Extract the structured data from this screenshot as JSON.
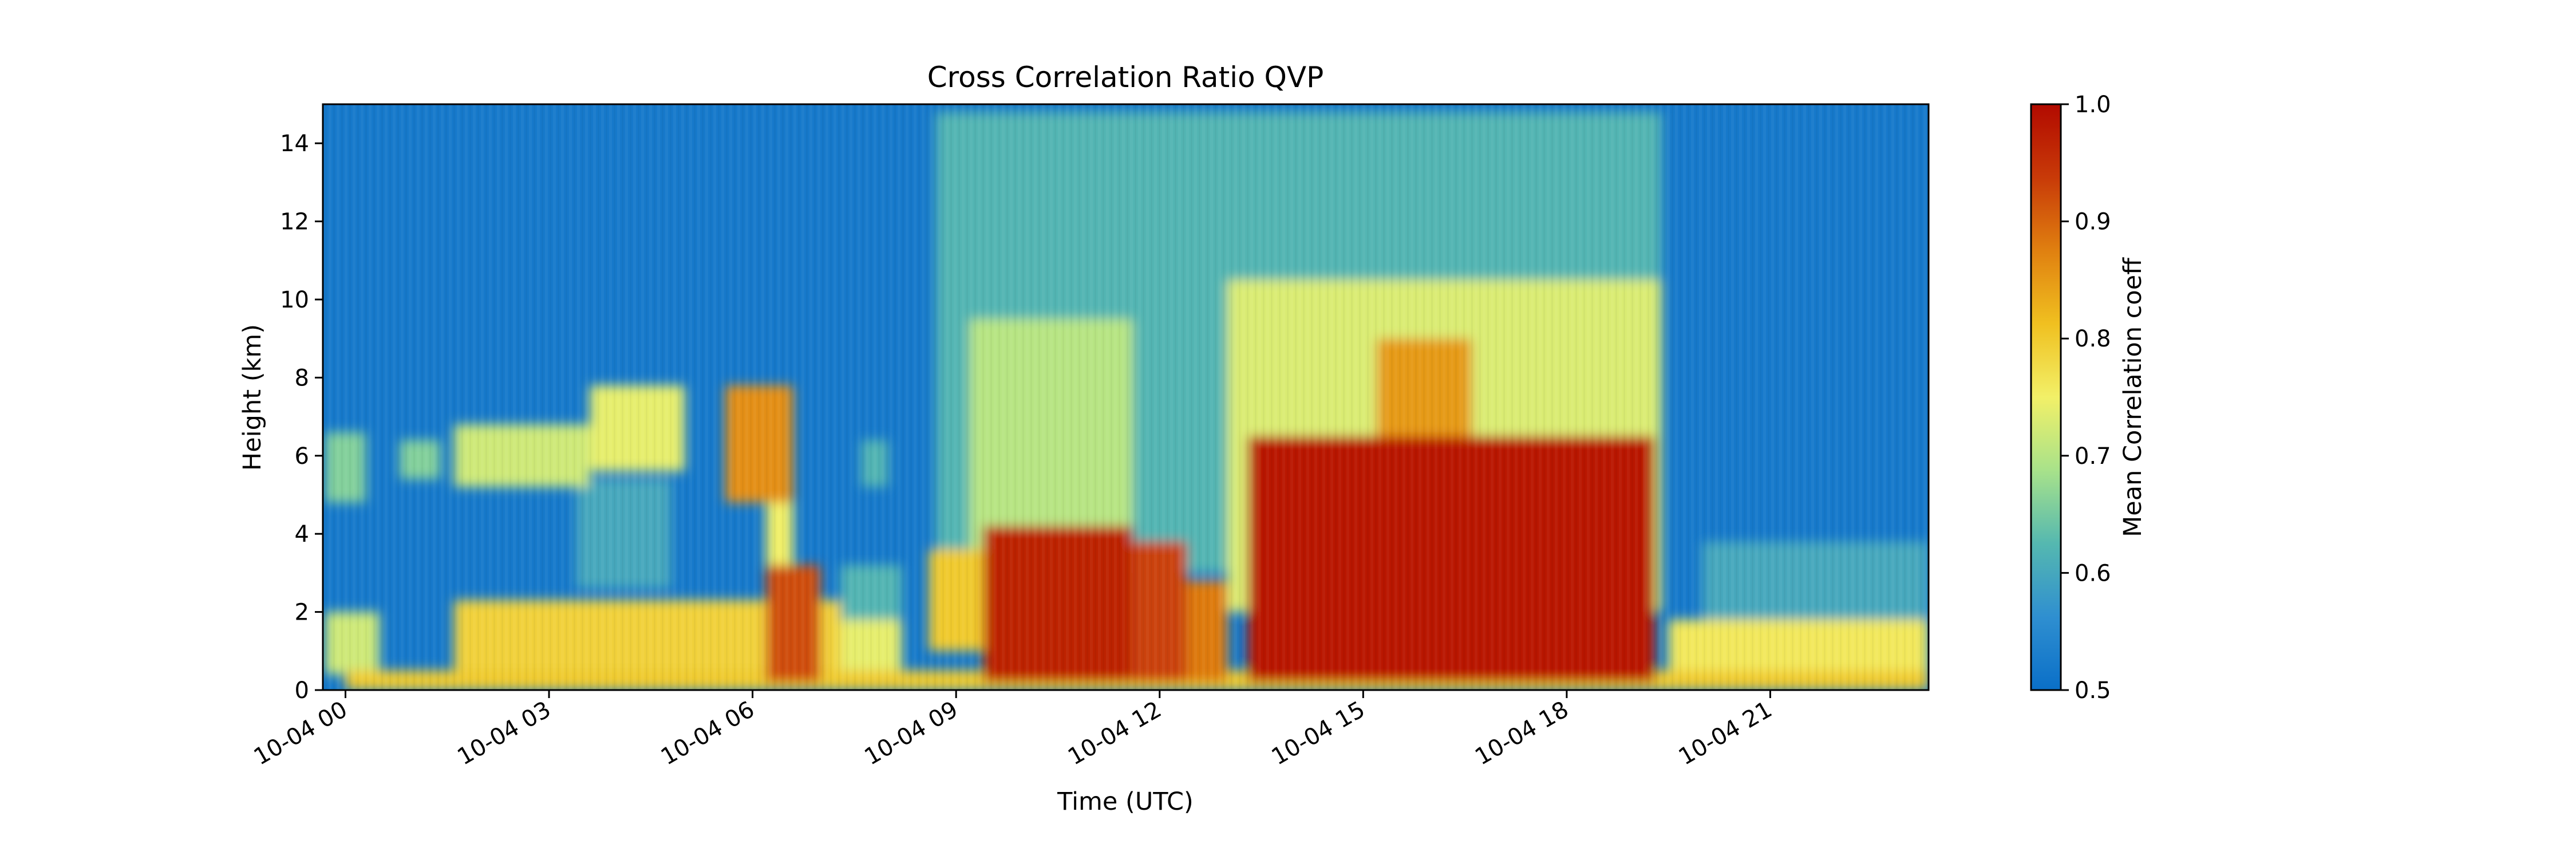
{
  "chart_data": {
    "type": "heatmap",
    "title": "Cross Correlation Ratio QVP",
    "xlabel": "Time (UTC)",
    "ylabel": "Height (km)",
    "x_range": [
      "10-04 00 -00:20",
      "10-04 23:20"
    ],
    "ylim": [
      0,
      15
    ],
    "x_ticks": [
      {
        "label": "10-04 00",
        "hour": 0
      },
      {
        "label": "10-04 03",
        "hour": 3
      },
      {
        "label": "10-04 06",
        "hour": 6
      },
      {
        "label": "10-04 09",
        "hour": 9
      },
      {
        "label": "10-04 12",
        "hour": 12
      },
      {
        "label": "10-04 15",
        "hour": 15
      },
      {
        "label": "10-04 18",
        "hour": 18
      },
      {
        "label": "10-04 21",
        "hour": 21
      }
    ],
    "y_ticks": [
      "0",
      "2",
      "4",
      "6",
      "8",
      "10",
      "12",
      "14"
    ],
    "colorbar": {
      "label": "Mean Correlation coeff",
      "range": [
        0.5,
        1.0
      ],
      "ticks": [
        "0.5",
        "0.6",
        "0.7",
        "0.8",
        "0.9",
        "1.0"
      ],
      "colors": [
        "#0a6fc8",
        "#2f8fd0",
        "#55b8b0",
        "#a8e28a",
        "#f2f068",
        "#f0c020",
        "#e08010",
        "#c83a08",
        "#b20a00"
      ]
    },
    "background_value": 0.52,
    "features": [
      {
        "time_start": 0.0,
        "time_end": 23.33,
        "height_bottom": 0.0,
        "height_top": 0.5,
        "value": 0.8
      },
      {
        "time_start": 1.6,
        "time_end": 7.3,
        "height_bottom": 0.5,
        "height_top": 2.3,
        "value": 0.79
      },
      {
        "time_start": -0.3,
        "time_end": 0.5,
        "height_bottom": 0.4,
        "height_top": 2.0,
        "value": 0.72
      },
      {
        "time_start": -0.3,
        "time_end": 0.3,
        "height_bottom": 4.8,
        "height_top": 6.6,
        "value": 0.66
      },
      {
        "time_start": 0.8,
        "time_end": 1.4,
        "height_bottom": 5.4,
        "height_top": 6.4,
        "value": 0.66
      },
      {
        "time_start": 1.6,
        "time_end": 3.6,
        "height_bottom": 5.2,
        "height_top": 6.8,
        "value": 0.72
      },
      {
        "time_start": 3.6,
        "time_end": 5.0,
        "height_bottom": 5.6,
        "height_top": 7.8,
        "value": 0.74
      },
      {
        "time_start": 3.4,
        "time_end": 4.8,
        "height_bottom": 2.6,
        "height_top": 5.4,
        "value": 0.6
      },
      {
        "time_start": 5.6,
        "time_end": 6.6,
        "height_bottom": 4.8,
        "height_top": 7.8,
        "value": 0.86
      },
      {
        "time_start": 6.2,
        "time_end": 6.6,
        "height_bottom": 3.0,
        "height_top": 5.0,
        "value": 0.75
      },
      {
        "time_start": 7.6,
        "time_end": 8.0,
        "height_bottom": 5.2,
        "height_top": 6.4,
        "value": 0.62
      },
      {
        "time_start": 7.2,
        "time_end": 8.2,
        "height_bottom": 0.5,
        "height_top": 1.8,
        "value": 0.74
      },
      {
        "time_start": 7.3,
        "time_end": 8.2,
        "height_bottom": 1.8,
        "height_top": 3.2,
        "value": 0.62
      },
      {
        "time_start": 6.2,
        "time_end": 7.0,
        "height_bottom": 0.2,
        "height_top": 3.2,
        "value": 0.92
      },
      {
        "time_start": 8.6,
        "time_end": 9.6,
        "height_bottom": 1.0,
        "height_top": 3.6,
        "value": 0.8
      },
      {
        "time_start": 8.7,
        "time_end": 19.4,
        "height_bottom": 3.0,
        "height_top": 14.8,
        "value": 0.62
      },
      {
        "time_start": 9.2,
        "time_end": 11.6,
        "height_bottom": 3.0,
        "height_top": 9.5,
        "value": 0.7
      },
      {
        "time_start": 9.4,
        "time_end": 11.6,
        "height_bottom": 0.2,
        "height_top": 4.2,
        "value": 0.97
      },
      {
        "time_start": 11.6,
        "time_end": 12.4,
        "height_bottom": 0.2,
        "height_top": 3.8,
        "value": 0.93
      },
      {
        "time_start": 12.4,
        "time_end": 13.0,
        "height_bottom": 0.2,
        "height_top": 2.8,
        "value": 0.88
      },
      {
        "time_start": 13.0,
        "time_end": 19.4,
        "height_bottom": 2.0,
        "height_top": 10.5,
        "value": 0.73
      },
      {
        "time_start": 13.3,
        "time_end": 19.3,
        "height_bottom": 0.2,
        "height_top": 6.5,
        "value": 0.98
      },
      {
        "time_start": 15.2,
        "time_end": 16.6,
        "height_bottom": 6.0,
        "height_top": 9.0,
        "value": 0.85
      },
      {
        "time_start": 19.5,
        "time_end": 23.33,
        "height_bottom": 0.4,
        "height_top": 1.8,
        "value": 0.76
      },
      {
        "time_start": 20.0,
        "time_end": 23.33,
        "height_bottom": 1.8,
        "height_top": 3.8,
        "value": 0.6
      }
    ]
  }
}
